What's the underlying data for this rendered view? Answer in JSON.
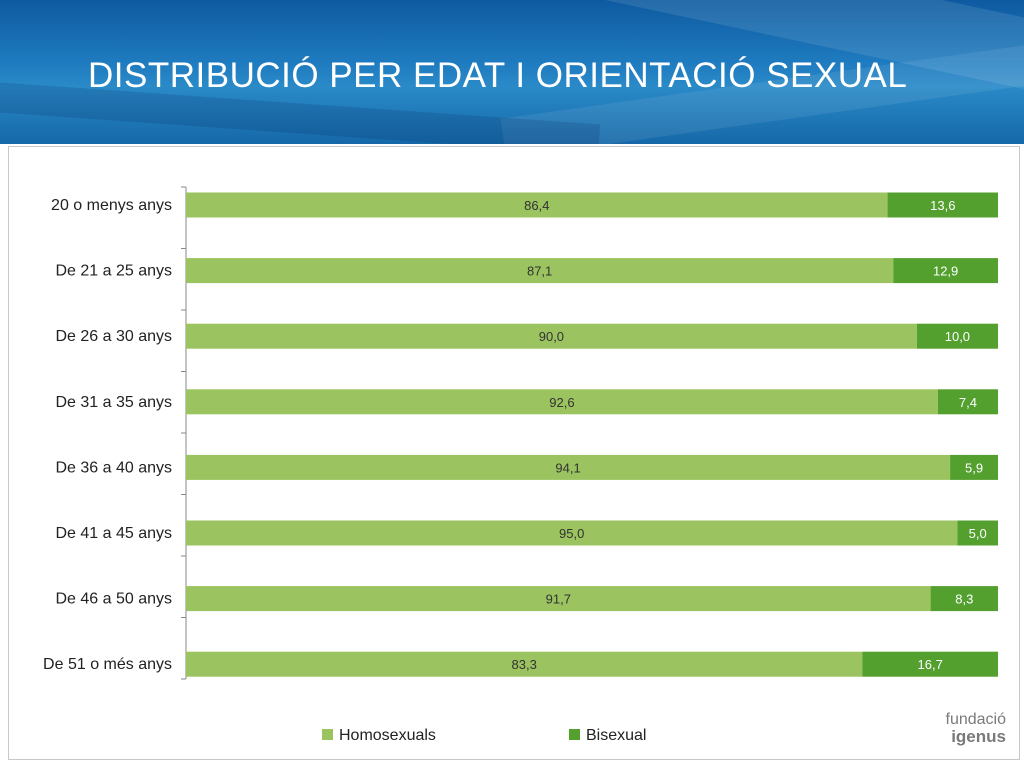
{
  "title": "DISTRIBUCIÓ PER EDAT I ORIENTACIÓ SEXUAL",
  "logo": {
    "line1": "fundació",
    "line2": "igenus"
  },
  "colors": {
    "homosexuals": "#9bc35f",
    "bisexual": "#53a02f",
    "header": "#1f7cc0"
  },
  "chart_data": {
    "type": "bar",
    "orientation": "horizontal",
    "stacked": "percent",
    "categories": [
      "20 o menys anys",
      "De 21 a 25 anys",
      "De 26 a 30 anys",
      "De 31 a 35 anys",
      "De 36 a 40 anys",
      "De 41 a 45 anys",
      "De 46 a 50 anys",
      "De 51 o més anys"
    ],
    "series": [
      {
        "name": "Homosexuals",
        "color": "#9bc35f",
        "values": [
          86.4,
          87.1,
          90.0,
          92.6,
          94.1,
          95.0,
          91.7,
          83.3
        ],
        "labels": [
          "86,4",
          "87,1",
          "90,0",
          "92,6",
          "94,1",
          "95,0",
          "91,7",
          "83,3"
        ]
      },
      {
        "name": "Bisexual",
        "color": "#53a02f",
        "values": [
          13.6,
          12.9,
          10.0,
          7.4,
          5.9,
          5.0,
          8.3,
          16.7
        ],
        "labels": [
          "13,6",
          "12,9",
          "10,0",
          "7,4",
          "5,9",
          "5,0",
          "8,3",
          "16,7"
        ]
      }
    ],
    "xlim": [
      0,
      100
    ],
    "legend": "bottom",
    "grid": false
  }
}
